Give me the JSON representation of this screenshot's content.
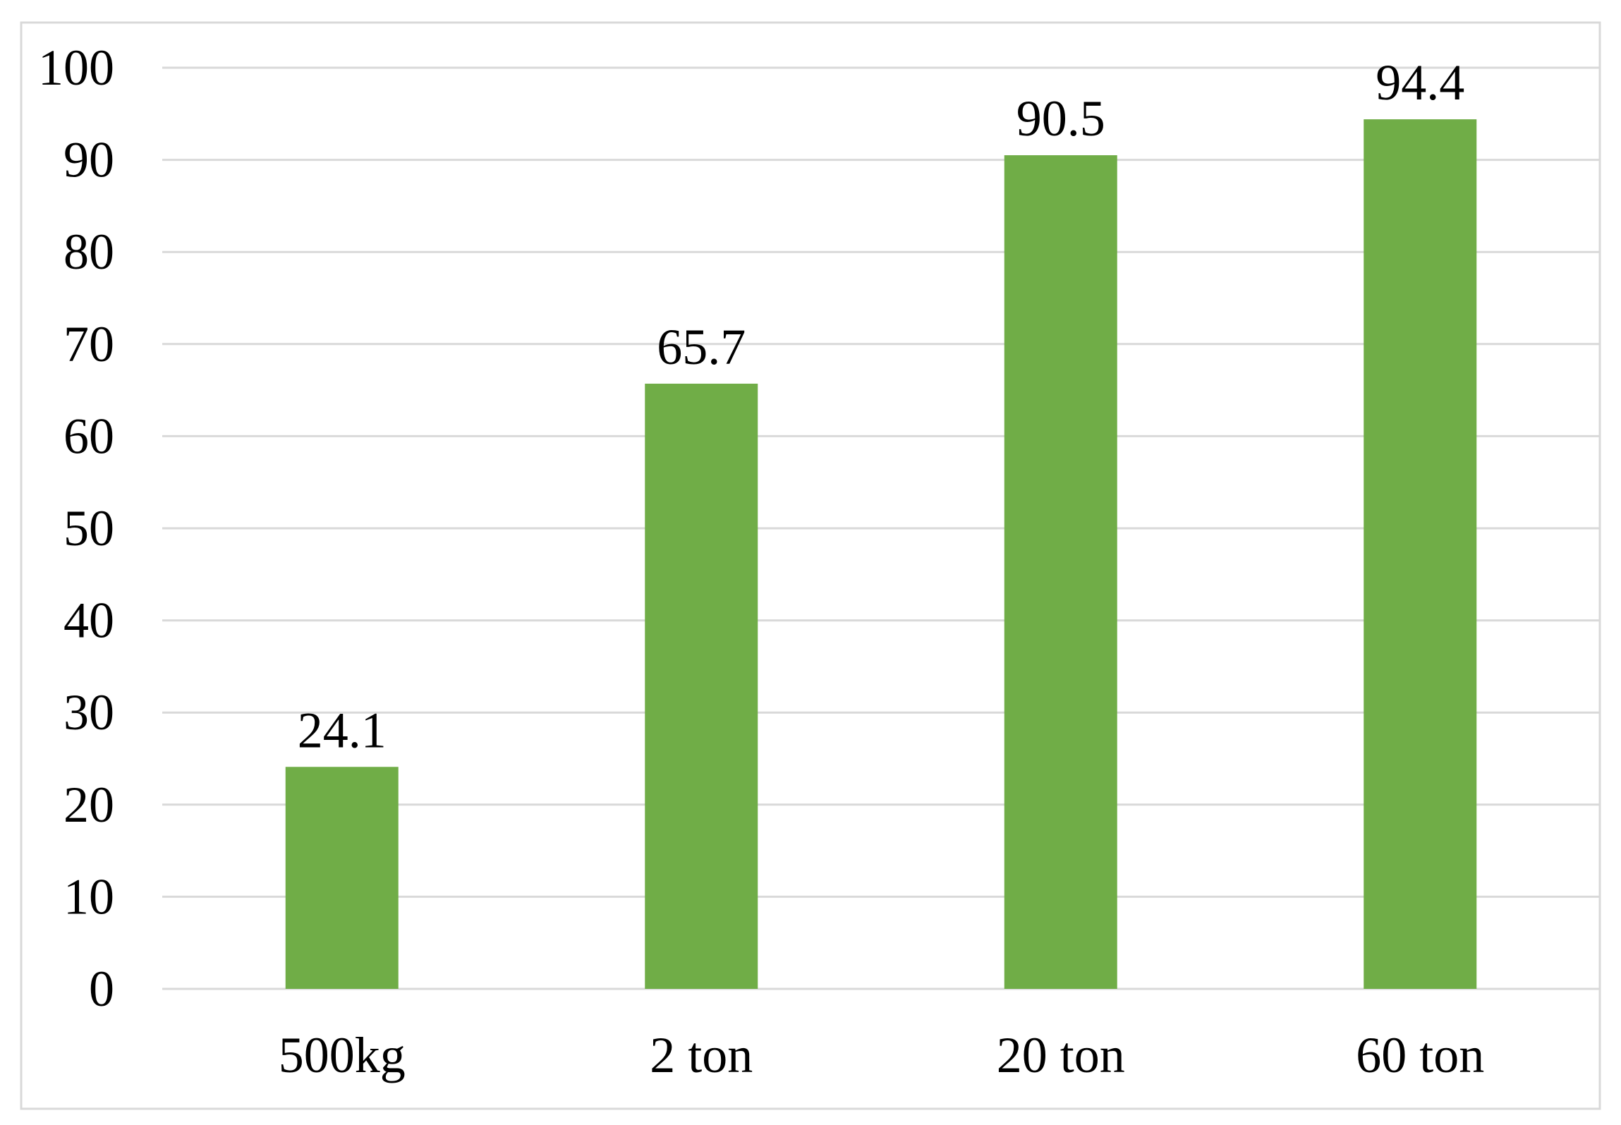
{
  "chart_data": {
    "type": "bar",
    "title": "",
    "xlabel": "",
    "ylabel": "",
    "categories": [
      "500kg",
      "2 ton",
      "20 ton",
      "60 ton"
    ],
    "values": [
      24.1,
      65.7,
      90.5,
      94.4
    ],
    "value_labels": [
      "24.1",
      "65.7",
      "90.5",
      "94.4"
    ],
    "ylim": [
      0,
      100
    ],
    "yticks": [
      0,
      10,
      20,
      30,
      40,
      50,
      60,
      70,
      80,
      90,
      100
    ],
    "ytick_labels": [
      "0",
      "10",
      "20",
      "30",
      "40",
      "50",
      "60",
      "70",
      "80",
      "90",
      "100"
    ],
    "grid": true,
    "legend": "none",
    "colors": {
      "bar": "#70AD47",
      "grid": "#D9D9D9",
      "axis": "#D9D9D9",
      "border": "#D9D9D9",
      "text": "#000000"
    }
  }
}
